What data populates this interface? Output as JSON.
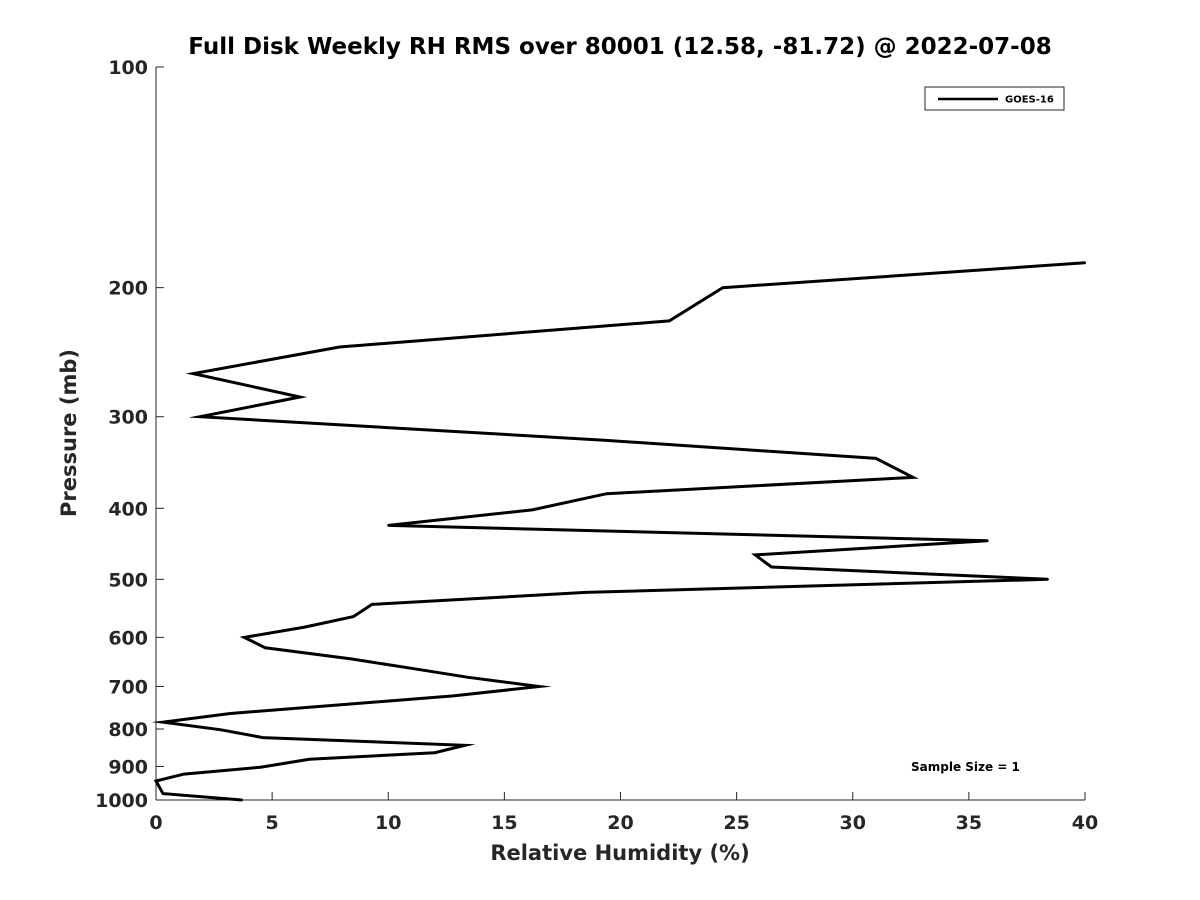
{
  "chart_data": {
    "type": "line",
    "title": "Full Disk Weekly RH RMS over 80001 (12.58, -81.72) @ 2022-07-08",
    "xlabel": "Relative Humidity (%)",
    "ylabel": "Pressure (mb)",
    "xlim": [
      0,
      40
    ],
    "ylim": [
      100,
      1000
    ],
    "y_scale": "log",
    "y_reversed": true,
    "x_ticks": [
      0,
      5,
      10,
      15,
      20,
      25,
      30,
      35,
      40
    ],
    "y_ticks": [
      100,
      200,
      300,
      400,
      500,
      600,
      700,
      800,
      900,
      1000
    ],
    "grid": false,
    "legend_position": "top-right",
    "annotation": "Sample Size = 1",
    "series": [
      {
        "name": "GOES-16",
        "color": "#000000",
        "points": [
          {
            "x": 40.0,
            "y": 185
          },
          {
            "x": 24.4,
            "y": 200
          },
          {
            "x": 22.1,
            "y": 222
          },
          {
            "x": 7.9,
            "y": 241
          },
          {
            "x": 1.6,
            "y": 262
          },
          {
            "x": 6.2,
            "y": 282
          },
          {
            "x": 1.9,
            "y": 300
          },
          {
            "x": 19.3,
            "y": 323
          },
          {
            "x": 31.0,
            "y": 342
          },
          {
            "x": 32.6,
            "y": 363
          },
          {
            "x": 19.4,
            "y": 382
          },
          {
            "x": 16.2,
            "y": 402
          },
          {
            "x": 10.0,
            "y": 422
          },
          {
            "x": 35.8,
            "y": 443
          },
          {
            "x": 25.8,
            "y": 463
          },
          {
            "x": 26.5,
            "y": 481
          },
          {
            "x": 38.4,
            "y": 500
          },
          {
            "x": 18.5,
            "y": 521
          },
          {
            "x": 9.3,
            "y": 541
          },
          {
            "x": 8.5,
            "y": 562
          },
          {
            "x": 6.4,
            "y": 581
          },
          {
            "x": 3.8,
            "y": 600
          },
          {
            "x": 4.7,
            "y": 620
          },
          {
            "x": 8.4,
            "y": 642
          },
          {
            "x": 11.1,
            "y": 662
          },
          {
            "x": 13.4,
            "y": 680
          },
          {
            "x": 16.5,
            "y": 700
          },
          {
            "x": 12.8,
            "y": 721
          },
          {
            "x": 3.2,
            "y": 762
          },
          {
            "x": 0.3,
            "y": 783
          },
          {
            "x": 2.8,
            "y": 802
          },
          {
            "x": 4.6,
            "y": 822
          },
          {
            "x": 13.3,
            "y": 842
          },
          {
            "x": 12.0,
            "y": 862
          },
          {
            "x": 6.6,
            "y": 880
          },
          {
            "x": 4.5,
            "y": 902
          },
          {
            "x": 1.2,
            "y": 922
          },
          {
            "x": 0.0,
            "y": 942
          },
          {
            "x": 0.3,
            "y": 980
          },
          {
            "x": 3.7,
            "y": 1000
          }
        ]
      }
    ]
  }
}
